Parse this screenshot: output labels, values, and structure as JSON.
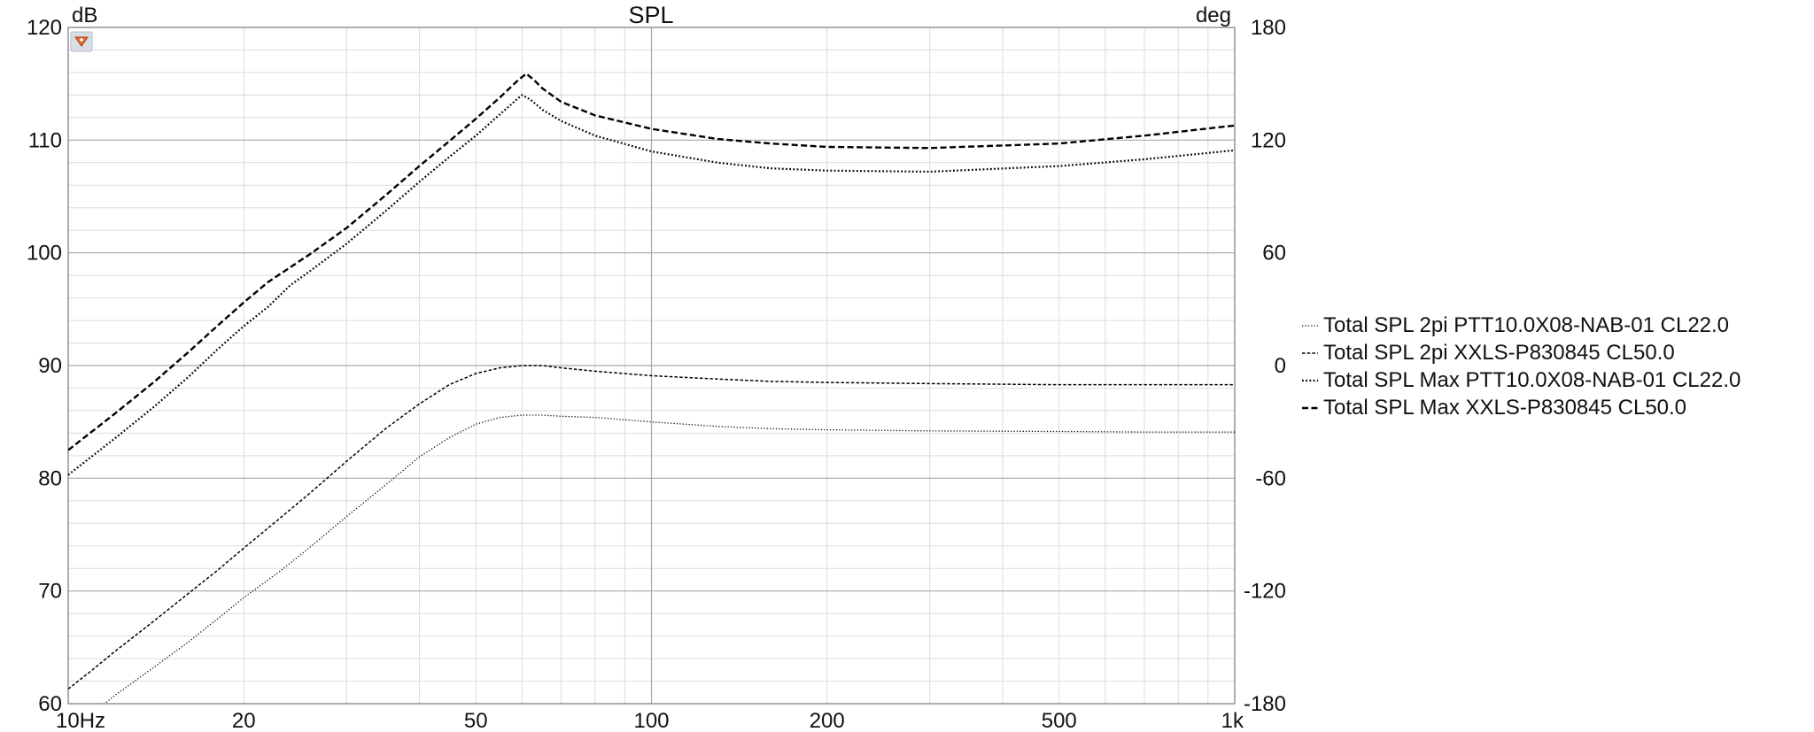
{
  "chart_data": {
    "type": "line",
    "title": "SPL",
    "y_unit_left": "dB",
    "y_unit_right": "deg",
    "x_scale": "log",
    "xlim": [
      10,
      1000
    ],
    "ylim": [
      60,
      120
    ],
    "y2lim": [
      -180,
      180
    ],
    "grid": true,
    "legend_position": "right",
    "x_ticks": [
      {
        "value": 10,
        "label": "10Hz"
      },
      {
        "value": 20,
        "label": "20"
      },
      {
        "value": 50,
        "label": "50"
      },
      {
        "value": 100,
        "label": "100"
      },
      {
        "value": 200,
        "label": "200"
      },
      {
        "value": 500,
        "label": "500"
      },
      {
        "value": 1000,
        "label": "1k"
      }
    ],
    "y_ticks": [
      "60",
      "70",
      "80",
      "90",
      "100",
      "110",
      "120"
    ],
    "y2_ticks": [
      "-180",
      "-120",
      "-60",
      "0",
      "60",
      "120",
      "180"
    ],
    "series": [
      {
        "name": "Total SPL 2pi PTT10.0X08-NAB-01 CL22.0",
        "style": "fine-dotted",
        "x": [
          10,
          11,
          12,
          14,
          16,
          18,
          20,
          23,
          26,
          30,
          35,
          40,
          45,
          50,
          55,
          60,
          65,
          70,
          80,
          100,
          130,
          160,
          200,
          300,
          500,
          700,
          1000
        ],
        "y": [
          57.5,
          59.1,
          60.7,
          63.2,
          65.4,
          67.5,
          69.4,
          71.7,
          73.9,
          76.6,
          79.4,
          81.9,
          83.6,
          84.8,
          85.4,
          85.6,
          85.6,
          85.5,
          85.4,
          85.0,
          84.6,
          84.4,
          84.3,
          84.2,
          84.15,
          84.1,
          84.1
        ]
      },
      {
        "name": "Total SPL 2pi XXLS-P830845 CL50.0",
        "style": "small-dash",
        "x": [
          10,
          11,
          12,
          14,
          16,
          18,
          20,
          23,
          26,
          30,
          35,
          40,
          45,
          50,
          55,
          60,
          65,
          70,
          80,
          100,
          130,
          160,
          200,
          300,
          500,
          700,
          1000
        ],
        "y": [
          61.3,
          63.0,
          64.6,
          67.3,
          69.7,
          71.8,
          73.8,
          76.4,
          78.7,
          81.5,
          84.4,
          86.6,
          88.3,
          89.3,
          89.8,
          90.0,
          90.0,
          89.8,
          89.5,
          89.1,
          88.8,
          88.6,
          88.5,
          88.4,
          88.3,
          88.3,
          88.3
        ]
      },
      {
        "name": "Total SPL Max PTT10.0X08-NAB-01 CL22.0",
        "style": "dotted",
        "x": [
          10,
          12,
          14,
          16,
          18,
          20,
          22,
          24,
          26,
          30,
          35,
          40,
          45,
          50,
          55,
          59,
          60,
          62,
          65,
          70,
          80,
          100,
          130,
          160,
          200,
          300,
          500,
          700,
          1000
        ],
        "y": [
          80.3,
          83.5,
          86.3,
          88.9,
          91.4,
          93.5,
          95.2,
          97.1,
          98.4,
          100.8,
          103.7,
          106.3,
          108.5,
          110.4,
          112.3,
          113.7,
          114.0,
          113.6,
          112.7,
          111.7,
          110.4,
          109.0,
          108.0,
          107.5,
          107.3,
          107.2,
          107.7,
          108.3,
          109.1
        ]
      },
      {
        "name": "Total SPL Max XXLS-P830845 CL50.0",
        "style": "dashed",
        "x": [
          10,
          12,
          14,
          16,
          18,
          20,
          22,
          24,
          26,
          30,
          35,
          40,
          45,
          50,
          55,
          59,
          61,
          63,
          65,
          70,
          80,
          100,
          130,
          160,
          200,
          300,
          500,
          700,
          1000
        ],
        "y": [
          82.5,
          85.7,
          88.5,
          91.1,
          93.5,
          95.6,
          97.4,
          98.7,
          99.9,
          102.2,
          105.1,
          107.7,
          109.9,
          111.9,
          113.8,
          115.3,
          115.9,
          115.3,
          114.6,
          113.4,
          112.2,
          111.0,
          110.1,
          109.7,
          109.4,
          109.3,
          109.7,
          110.4,
          111.3
        ]
      }
    ]
  }
}
